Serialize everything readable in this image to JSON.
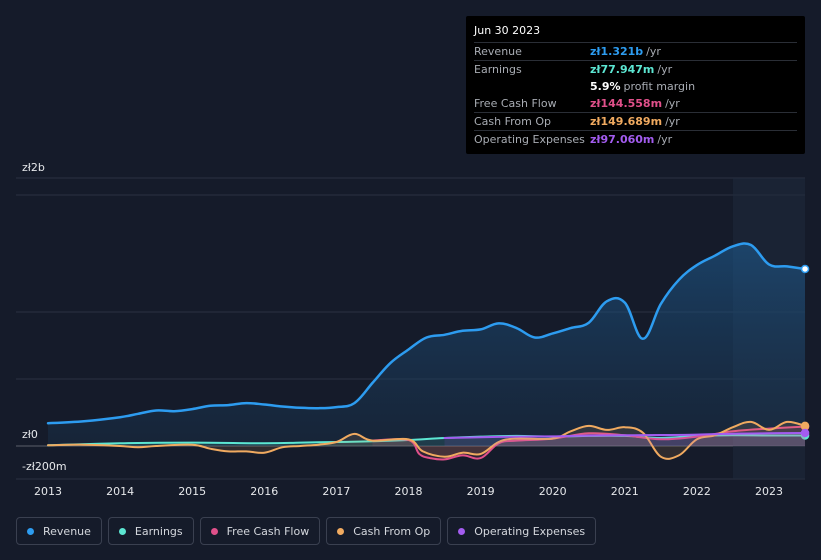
{
  "tooltip": {
    "date": "Jun 30 2023",
    "rows": [
      {
        "label": "Revenue",
        "value": "zł1.321b",
        "unit": "/yr",
        "color": "#2d9cf0"
      },
      {
        "label": "Earnings",
        "value": "zł77.947m",
        "unit": "/yr",
        "color": "#5ce6d2"
      },
      {
        "label": "",
        "value": "5.9%",
        "unit": "profit margin",
        "color": "#ffffff"
      },
      {
        "label": "Free Cash Flow",
        "value": "zł144.558m",
        "unit": "/yr",
        "color": "#e0508a"
      },
      {
        "label": "Cash From Op",
        "value": "zł149.689m",
        "unit": "/yr",
        "color": "#f0aa60"
      },
      {
        "label": "Operating Expenses",
        "value": "zł97.060m",
        "unit": "/yr",
        "color": "#a35cf0"
      }
    ]
  },
  "chart_data": {
    "type": "area",
    "y_axis_labels": {
      "top": "zł2b",
      "zero": "zł0",
      "bottom": "-zł200m"
    },
    "ylim": [
      -200,
      2000
    ],
    "xlim": [
      2012.85,
      2023.5
    ],
    "x_ticks": [
      "2013",
      "2014",
      "2015",
      "2016",
      "2017",
      "2018",
      "2019",
      "2020",
      "2021",
      "2022",
      "2023"
    ],
    "highlight_start": 2022.5,
    "series": [
      {
        "name": "Revenue",
        "color": "#2d9cf0",
        "filled": true,
        "x": [
          2013.0,
          2013.5,
          2014.0,
          2014.25,
          2014.5,
          2014.75,
          2015.0,
          2015.25,
          2015.5,
          2015.75,
          2016.0,
          2016.25,
          2016.5,
          2016.75,
          2017.0,
          2017.25,
          2017.5,
          2017.75,
          2018.0,
          2018.25,
          2018.5,
          2018.75,
          2019.0,
          2019.25,
          2019.5,
          2019.75,
          2020.0,
          2020.25,
          2020.5,
          2020.75,
          2021.0,
          2021.25,
          2021.5,
          2021.75,
          2022.0,
          2022.25,
          2022.5,
          2022.75,
          2023.0,
          2023.25,
          2023.5
        ],
        "values": [
          170,
          185,
          215,
          240,
          265,
          260,
          275,
          300,
          305,
          320,
          310,
          295,
          285,
          282,
          290,
          320,
          470,
          620,
          720,
          810,
          830,
          860,
          870,
          915,
          880,
          810,
          840,
          880,
          920,
          1080,
          1070,
          800,
          1060,
          1240,
          1350,
          1420,
          1490,
          1500,
          1355,
          1340,
          1321
        ]
      },
      {
        "name": "Earnings",
        "color": "#5ce6d2",
        "filled": false,
        "x": [
          2013.0,
          2014.0,
          2015.0,
          2016.0,
          2016.5,
          2017.0,
          2017.5,
          2018.0,
          2018.5,
          2019.0,
          2019.5,
          2020.0,
          2020.5,
          2021.0,
          2021.5,
          2022.0,
          2022.5,
          2023.0,
          2023.5
        ],
        "values": [
          5,
          20,
          25,
          20,
          25,
          30,
          35,
          45,
          60,
          70,
          75,
          70,
          75,
          75,
          60,
          75,
          80,
          78,
          78
        ]
      },
      {
        "name": "Free Cash Flow",
        "color": "#e0508a",
        "filled": false,
        "x": [
          2017.5,
          2018.0,
          2018.15,
          2018.3,
          2018.5,
          2018.75,
          2019.0,
          2019.25,
          2019.5,
          2020.0,
          2020.5,
          2021.0,
          2021.5,
          2022.0,
          2022.5,
          2023.0,
          2023.5
        ],
        "values": [
          40,
          45,
          -60,
          -90,
          -100,
          -70,
          -90,
          20,
          40,
          55,
          95,
          80,
          50,
          70,
          110,
          130,
          145
        ]
      },
      {
        "name": "Cash From Op",
        "color": "#f0aa60",
        "filled": false,
        "x": [
          2013.0,
          2013.5,
          2014.0,
          2014.25,
          2014.5,
          2015.0,
          2015.25,
          2015.5,
          2015.75,
          2016.0,
          2016.25,
          2016.5,
          2016.75,
          2017.0,
          2017.25,
          2017.5,
          2018.0,
          2018.2,
          2018.5,
          2018.75,
          2019.0,
          2019.25,
          2019.5,
          2020.0,
          2020.25,
          2020.5,
          2020.75,
          2021.0,
          2021.25,
          2021.5,
          2021.75,
          2022.0,
          2022.25,
          2022.5,
          2022.75,
          2023.0,
          2023.25,
          2023.5
        ],
        "values": [
          5,
          10,
          0,
          -10,
          0,
          10,
          -20,
          -40,
          -40,
          -50,
          -10,
          0,
          10,
          30,
          90,
          40,
          50,
          -40,
          -80,
          -50,
          -60,
          30,
          55,
          55,
          110,
          150,
          120,
          140,
          100,
          -80,
          -70,
          50,
          80,
          140,
          180,
          120,
          180,
          150
        ]
      },
      {
        "name": "Operating Expenses",
        "color": "#a35cf0",
        "filled": false,
        "x": [
          2018.5,
          2019.0,
          2019.5,
          2020.0,
          2020.5,
          2021.0,
          2021.5,
          2022.0,
          2022.5,
          2023.0,
          2023.5
        ],
        "values": [
          60,
          65,
          70,
          72,
          78,
          80,
          82,
          85,
          92,
          95,
          97
        ]
      }
    ]
  },
  "legend": [
    {
      "label": "Revenue",
      "color": "#2d9cf0"
    },
    {
      "label": "Earnings",
      "color": "#5ce6d2"
    },
    {
      "label": "Free Cash Flow",
      "color": "#e0508a"
    },
    {
      "label": "Cash From Op",
      "color": "#f0aa60"
    },
    {
      "label": "Operating Expenses",
      "color": "#a35cf0"
    }
  ]
}
